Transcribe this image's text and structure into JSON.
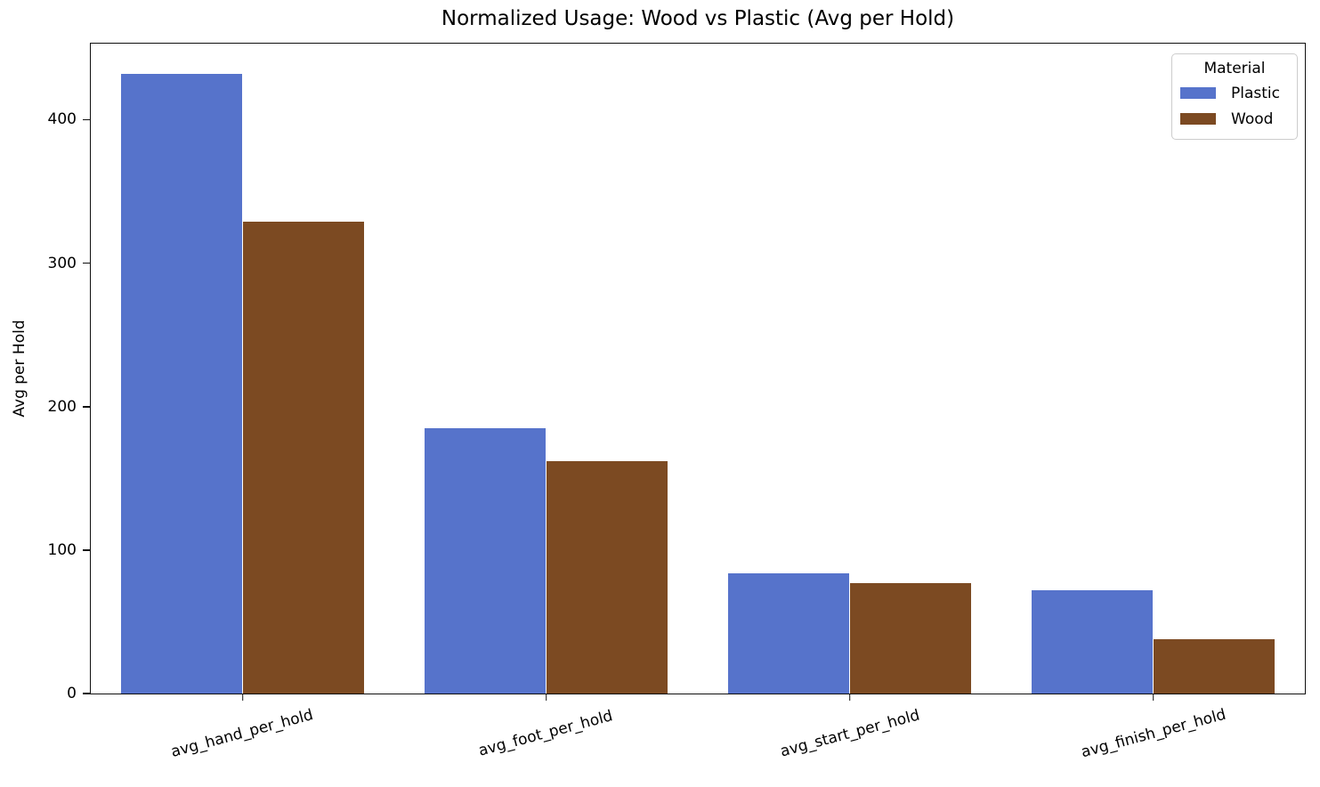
{
  "chart_data": {
    "type": "bar",
    "title": "Normalized Usage: Wood vs Plastic (Avg per Hold)",
    "xlabel": "",
    "ylabel": "Avg per Hold",
    "categories": [
      "avg_hand_per_hold",
      "avg_foot_per_hold",
      "avg_start_per_hold",
      "avg_finish_per_hold"
    ],
    "series": [
      {
        "name": "Plastic",
        "color": "#5673cb",
        "values": [
          432,
          185,
          84,
          72
        ]
      },
      {
        "name": "Wood",
        "color": "#7c4a22",
        "values": [
          329,
          162,
          77,
          38
        ]
      }
    ],
    "ylim": [
      0,
      453
    ],
    "yticks": [
      0,
      100,
      200,
      300,
      400
    ],
    "grid": false,
    "legend_title": "Material",
    "legend_position": "upper right",
    "xlabel_rotation_deg": 15
  }
}
